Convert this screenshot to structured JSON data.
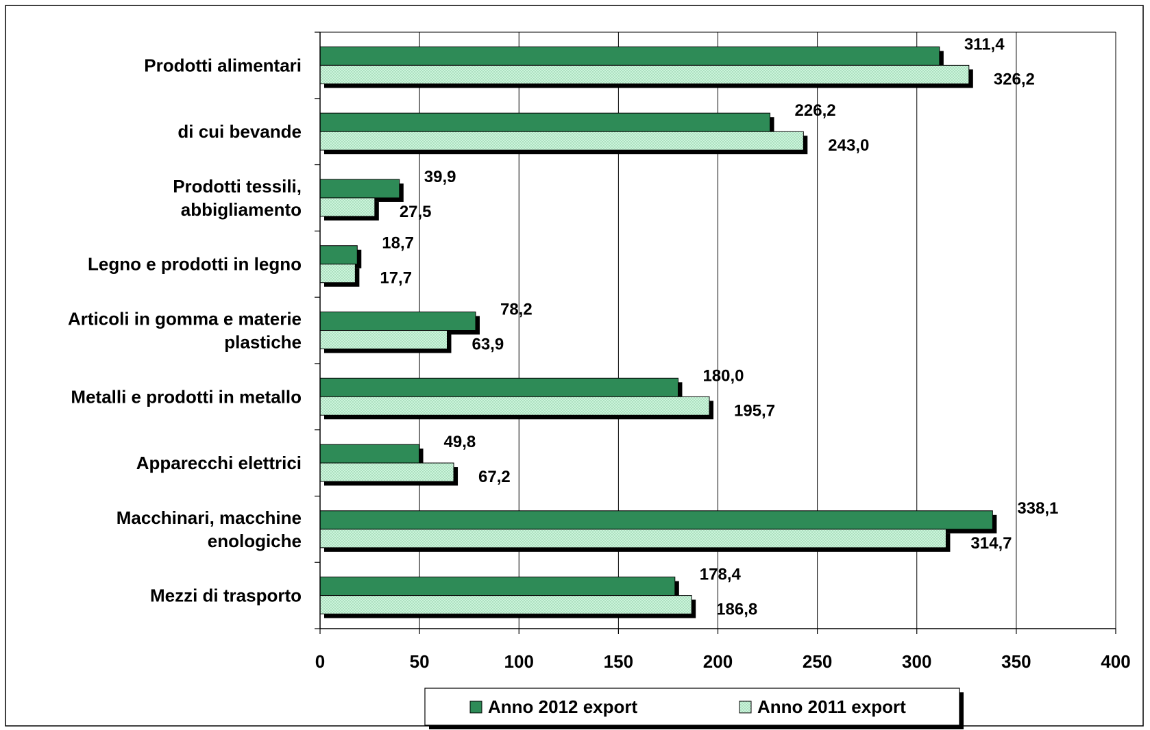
{
  "chart_data": {
    "type": "bar",
    "orientation": "horizontal",
    "title": "",
    "xlabel": "",
    "ylabel": "",
    "xlim": [
      0,
      400
    ],
    "x_ticks": [
      0,
      50,
      100,
      150,
      200,
      250,
      300,
      350,
      400
    ],
    "grid": true,
    "legend_position": "bottom",
    "categories": [
      [
        "Prodotti alimentari"
      ],
      [
        "di cui bevande"
      ],
      [
        "Prodotti tessili,",
        "abbigliamento"
      ],
      [
        "Legno e prodotti in legno"
      ],
      [
        "Articoli in gomma e materie",
        "plastiche"
      ],
      [
        "Metalli e prodotti in metallo"
      ],
      [
        "Apparecchi elettrici"
      ],
      [
        "Macchinari, macchine",
        "enologiche"
      ],
      [
        "Mezzi di trasporto"
      ]
    ],
    "series": [
      {
        "name": "Anno 2012 export",
        "color": "#2E8B57",
        "pattern": "solid",
        "values": [
          311.4,
          226.2,
          39.9,
          18.7,
          78.2,
          180.0,
          49.8,
          338.1,
          178.4
        ],
        "labels": [
          "311,4",
          "226,2",
          "39,9",
          "18,7",
          "78,2",
          "180,0",
          "49,8",
          "338,1",
          "178,4"
        ]
      },
      {
        "name": "Anno 2011 export",
        "color": "#CCF5DC",
        "pattern": "dotted",
        "values": [
          326.2,
          243.0,
          27.5,
          17.7,
          63.9,
          195.7,
          67.2,
          314.7,
          186.8
        ],
        "labels": [
          "326,2",
          "243,0",
          "27,5",
          "17,7",
          "63,9",
          "195,7",
          "67,2",
          "314,7",
          "186,8"
        ]
      }
    ]
  }
}
